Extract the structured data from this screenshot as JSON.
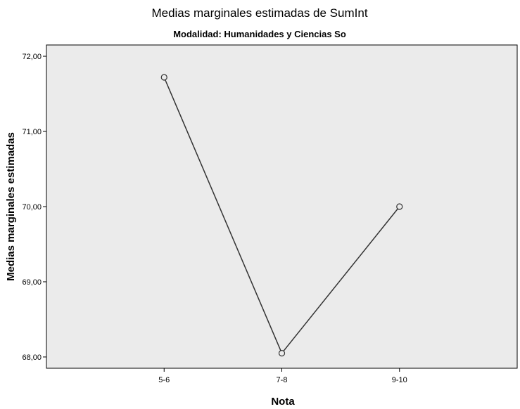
{
  "chart_data": {
    "type": "line",
    "title": "Medias marginales estimadas de SumInt",
    "subtitle": "Modalidad: Humanidades y Ciencias So",
    "xlabel": "Nota",
    "ylabel": "Medias marginales estimadas",
    "categories": [
      "5-6",
      "7-8",
      "9-10"
    ],
    "series": [
      {
        "values": [
          71.72,
          68.05,
          70.0
        ]
      }
    ],
    "ylim": [
      67.85,
      72.15
    ],
    "yticks": [
      68.0,
      69.0,
      70.0,
      71.0,
      72.0
    ],
    "ytick_labels": [
      "68,00",
      "69,00",
      "70,00",
      "71,00",
      "72,00"
    ],
    "grid": false,
    "legend": "none",
    "colors": {
      "plot_background": "#ebebeb",
      "line": "#333333",
      "marker_fill": "#ebebeb"
    }
  }
}
